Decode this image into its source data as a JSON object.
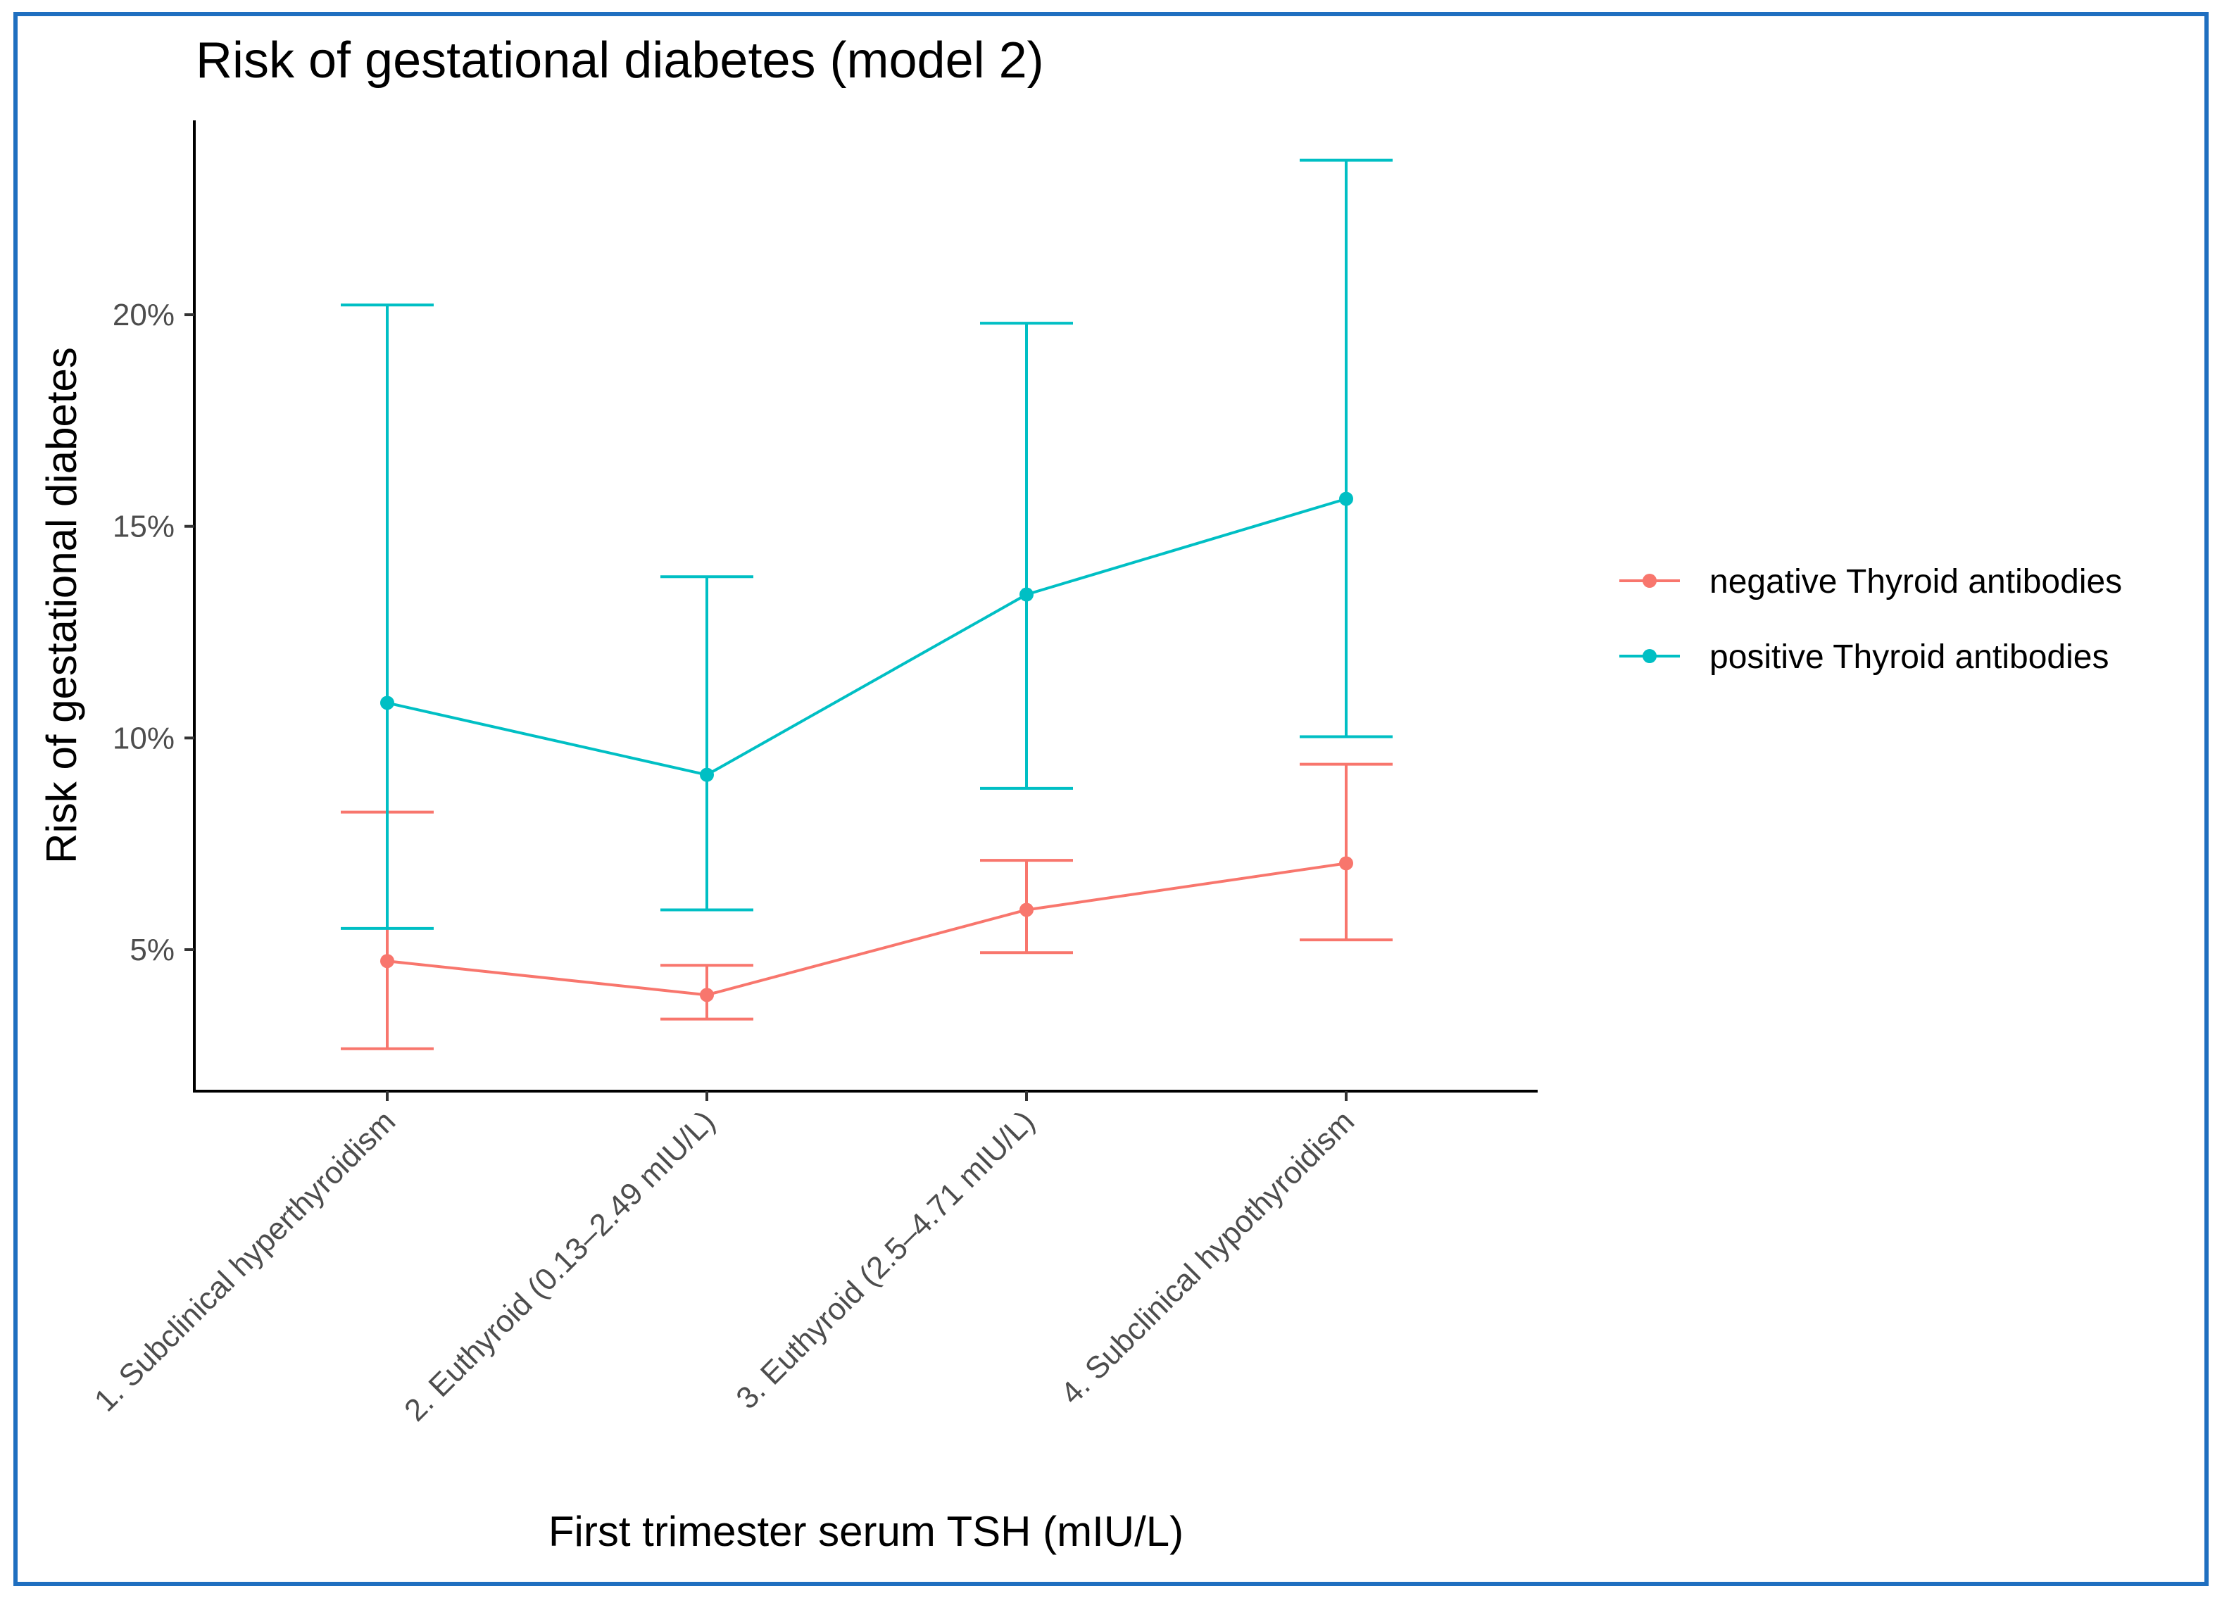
{
  "chart_data": {
    "type": "line",
    "title": "Risk of gestational diabetes (model 2)",
    "xlabel": "First trimester serum TSH (mIU/L)",
    "ylabel": "Risk of gestational diabetes",
    "categories": [
      "1. Subclinical hyperthyroidism",
      "2. Euthyroid (0.13–2.49 mIU/L)",
      "3. Euthyroid (2.5–4.71 mIU/L)",
      "4. Subclinical hypothyroidism"
    ],
    "yticks": [
      5,
      10,
      15,
      20
    ],
    "ytick_labels": [
      "5%",
      "10%",
      "15%",
      "20%"
    ],
    "ylim": [
      1.65,
      24.6
    ],
    "grid": false,
    "legend_position": "right",
    "series": [
      {
        "name": "negative Thyroid antibodies",
        "color": "#F8766D",
        "values": [
          4.73,
          3.93,
          5.94,
          7.04
        ],
        "lower": [
          2.66,
          3.36,
          4.93,
          5.23
        ],
        "upper": [
          8.25,
          4.63,
          7.11,
          9.38
        ]
      },
      {
        "name": "positive Thyroid antibodies",
        "color": "#00BFC4",
        "values": [
          10.83,
          9.13,
          13.39,
          15.65
        ],
        "lower": [
          5.5,
          5.94,
          8.81,
          10.03
        ],
        "upper": [
          20.23,
          13.81,
          19.8,
          23.65
        ]
      }
    ],
    "frame_color": "#1F6FC0"
  }
}
